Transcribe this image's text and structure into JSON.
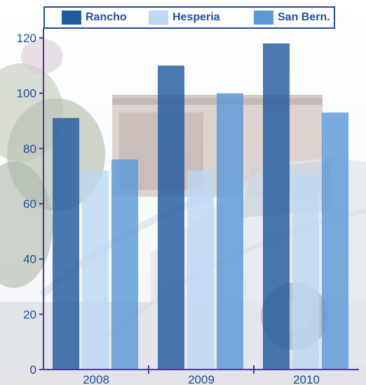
{
  "chart_data": {
    "type": "bar",
    "categories": [
      "2008",
      "2009",
      "2010"
    ],
    "series": [
      {
        "name": "Rancho",
        "values": [
          91,
          110,
          118
        ],
        "color": "#245aa0"
      },
      {
        "name": "Hesperia",
        "values": [
          72,
          72,
          70
        ],
        "color": "#bcd8f2"
      },
      {
        "name": "San Bern.",
        "values": [
          76,
          100,
          93
        ],
        "color": "#5b9ad6"
      }
    ],
    "ylim": [
      0,
      120
    ],
    "yticks": [
      0,
      20,
      40,
      60,
      80,
      100,
      120
    ],
    "title": "",
    "xlabel": "",
    "ylabel": "",
    "legend_position": "top",
    "grid": false,
    "axis_color": "#4c3a9b",
    "label_color": "#1f4e9c",
    "background": "faded outdoor photo of a truck and building"
  }
}
